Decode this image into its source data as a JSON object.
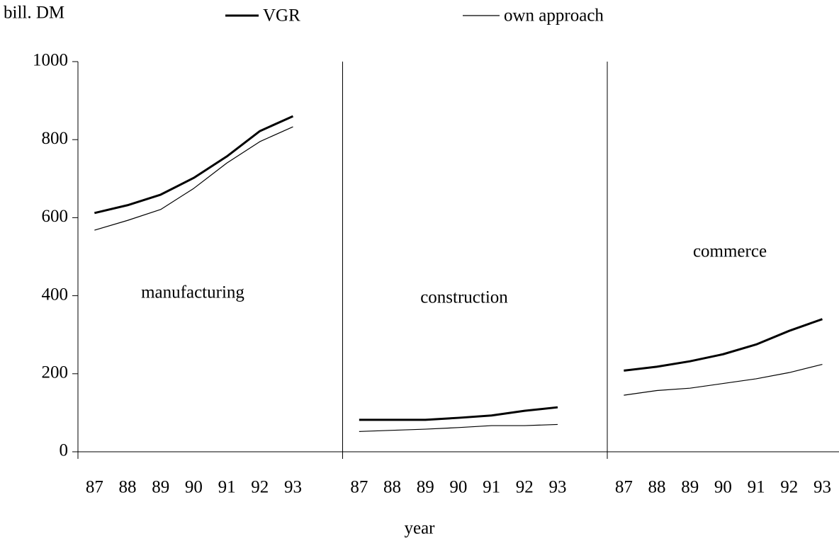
{
  "chart_data": {
    "type": "line",
    "y_label": "bill. DM",
    "x_label": "year",
    "ylim": [
      0,
      1000
    ],
    "yticks": [
      0,
      200,
      400,
      600,
      800,
      1000
    ],
    "series": [
      {
        "name": "VGR",
        "color": "#000000",
        "line_width": 3
      },
      {
        "name": "own approach",
        "color": "#000000",
        "line_width": 1.2
      }
    ],
    "panels": [
      {
        "label": "manufacturing",
        "categories": [
          "87",
          "88",
          "89",
          "90",
          "91",
          "92",
          "93"
        ],
        "series": [
          {
            "values": [
              612,
              632,
              659,
              702,
              757,
              822,
              860
            ]
          },
          {
            "values": [
              568,
              593,
              621,
              675,
              740,
              795,
              833
            ]
          }
        ]
      },
      {
        "label": "construction",
        "categories": [
          "87",
          "88",
          "89",
          "90",
          "91",
          "92",
          "93"
        ],
        "series": [
          {
            "values": [
              82,
              82,
              82,
              87,
              93,
              105,
              114
            ]
          },
          {
            "values": [
              52,
              55,
              58,
              62,
              67,
              67,
              70
            ]
          }
        ]
      },
      {
        "label": "commerce",
        "categories": [
          "87",
          "88",
          "89",
          "90",
          "91",
          "92",
          "93"
        ],
        "series": [
          {
            "values": [
              208,
              218,
              232,
              250,
              275,
              310,
              340
            ]
          },
          {
            "values": [
              145,
              157,
              163,
              175,
              187,
              203,
              224
            ]
          }
        ]
      }
    ]
  }
}
